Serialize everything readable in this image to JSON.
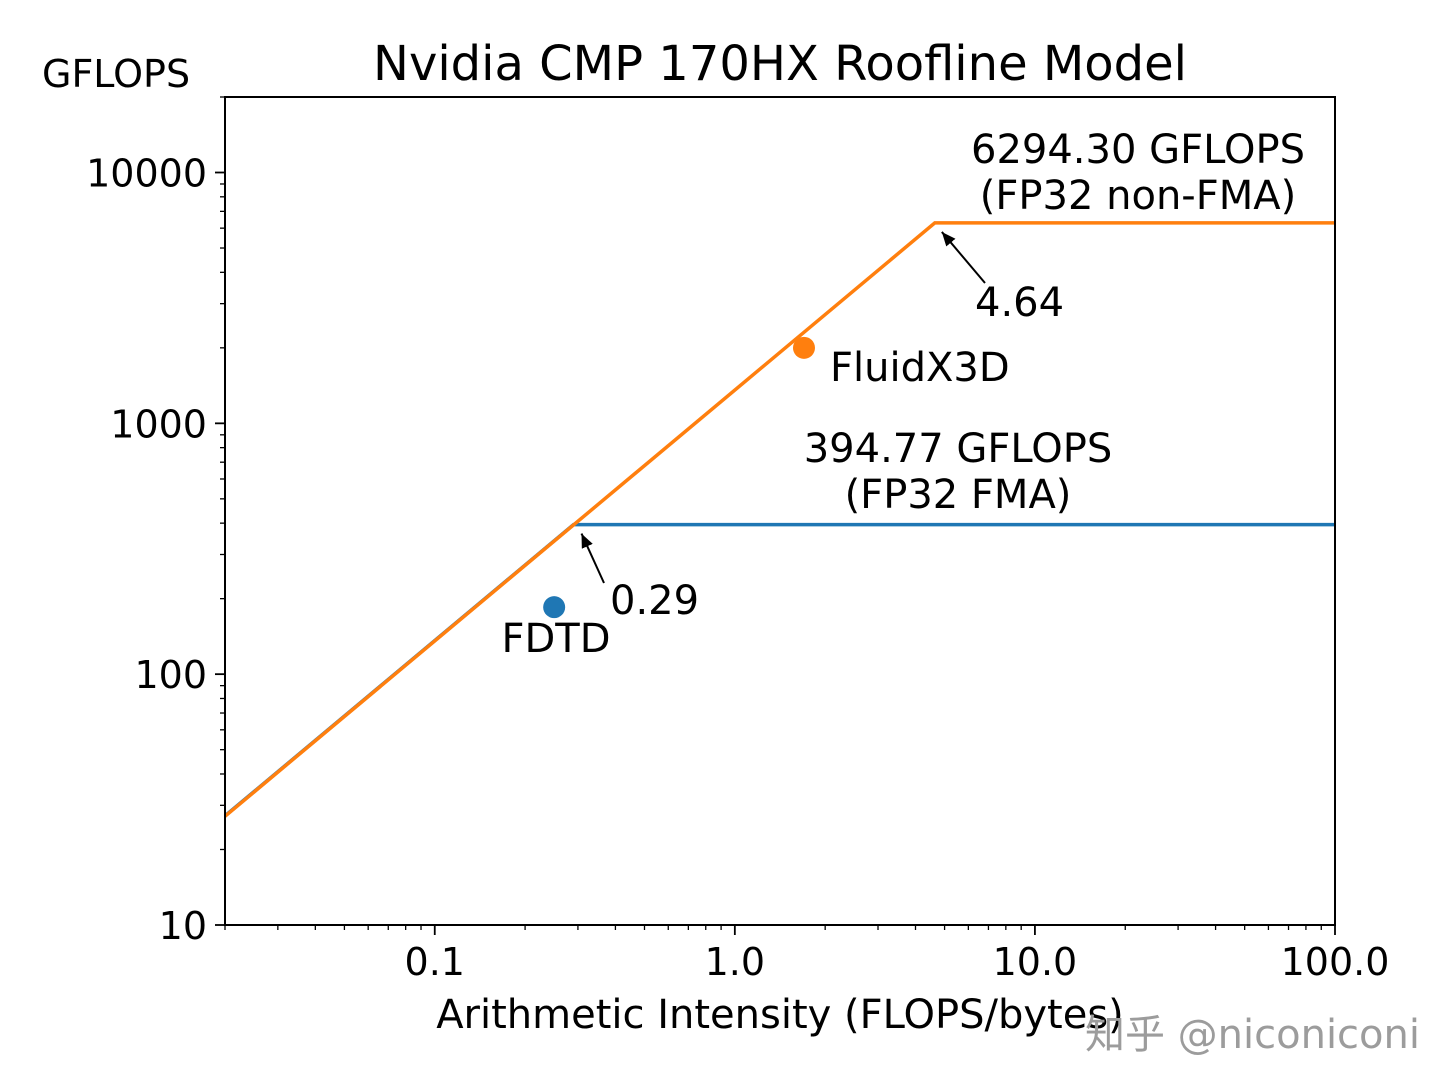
{
  "page": {
    "title": "Nvidia CMP 170HX Roofline Model",
    "corner_ylabel": "GFLOPS",
    "xlabel": "Arithmetic Intensity (FLOPS/bytes)",
    "watermark": "知乎 @niconiconi"
  },
  "colors": {
    "non_fma": "#ff7f0e",
    "fma": "#1f77b4",
    "watermark": "#9c9c9c",
    "axis": "#000000",
    "background": "#ffffff"
  },
  "chart_data": {
    "type": "line",
    "title": "Nvidia CMP 170HX Roofline Model",
    "xlabel": "Arithmetic Intensity (FLOPS/bytes)",
    "ylabel": "GFLOPS",
    "xscale": "log",
    "yscale": "log",
    "xlim": [
      0.02,
      100
    ],
    "ylim": [
      10,
      20000
    ],
    "xticks": [
      0.1,
      1,
      10,
      100
    ],
    "xtick_labels": [
      "0.1",
      "1.0",
      "10.0",
      "100.0"
    ],
    "yticks": [
      10,
      100,
      1000,
      10000
    ],
    "ytick_labels": [
      "10",
      "100",
      "1000",
      "10000"
    ],
    "grid": false,
    "legend": "none",
    "series": [
      {
        "id": "fp32-fma",
        "name": "FP32 FMA roofline",
        "peak_gflops": 394.77,
        "ridge_point": 0.29,
        "color": "#1f77b4",
        "points": [
          [
            0.02,
            27.22
          ],
          [
            0.29,
            394.77
          ],
          [
            100,
            394.77
          ]
        ]
      },
      {
        "id": "fp32-non-fma",
        "name": "FP32 non-FMA roofline",
        "peak_gflops": 6294.3,
        "ridge_point": 4.64,
        "color": "#ff7f0e",
        "points": [
          [
            0.02,
            27.13
          ],
          [
            4.64,
            6294.3
          ],
          [
            100,
            6294.3
          ]
        ]
      }
    ],
    "scatter": [
      {
        "id": "fluidx3d",
        "name": "FluidX3D",
        "x": 1.7,
        "y": 2000,
        "color": "#ff7f0e"
      },
      {
        "id": "fdtd",
        "name": "FDTD",
        "x": 0.25,
        "y": 185,
        "color": "#1f77b4"
      }
    ],
    "annotations": [
      {
        "id": "peak-non-fma",
        "lines": [
          "6294.30 GFLOPS",
          "(FP32 non-FMA)"
        ]
      },
      {
        "id": "ridge-non-fma",
        "lines": [
          "4.64"
        ],
        "arrow_to": [
          4.64,
          6294.3
        ]
      },
      {
        "id": "peak-fma",
        "lines": [
          "394.77 GFLOPS",
          "(FP32 FMA)"
        ]
      },
      {
        "id": "ridge-fma",
        "lines": [
          "0.29"
        ],
        "arrow_to": [
          0.29,
          394.77
        ]
      },
      {
        "id": "label-fluidx3d",
        "lines": [
          "FluidX3D"
        ]
      },
      {
        "id": "label-fdtd",
        "lines": [
          "FDTD"
        ]
      }
    ]
  }
}
